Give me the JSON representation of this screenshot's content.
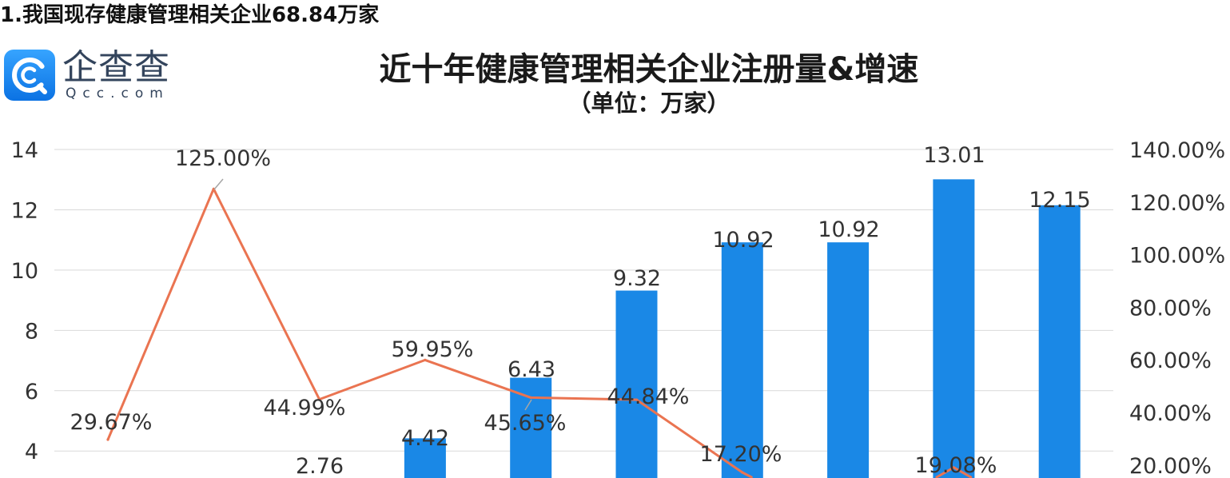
{
  "heading": "1.我国现存健康管理相关企业68.84万家",
  "logo": {
    "icon": "qcc-logo-icon",
    "name": "企查查",
    "domain": "Qcc.com",
    "color": "#1C87EC"
  },
  "chart_data": {
    "type": "bar",
    "title": "近十年健康管理相关企业注册量&增速",
    "subtitle": "（单位：万家）",
    "grid": true,
    "y_left": {
      "ticks": [
        "14",
        "12",
        "10",
        "8",
        "6",
        "4"
      ]
    },
    "y_right": {
      "ticks": [
        "140.00%",
        "120.00%",
        "100.00%",
        "80.00%",
        "60.00%",
        "40.00%",
        "20.00%"
      ]
    },
    "series": [
      {
        "type": "bar",
        "axis": "left",
        "color": "#1A88E6",
        "values": [
          null,
          null,
          2.76,
          4.42,
          6.43,
          9.32,
          10.92,
          10.92,
          13.01,
          12.15
        ],
        "labels": [
          null,
          null,
          "2.76",
          "4.42",
          "6.43",
          "9.32",
          "10.92",
          "10.92",
          "13.01",
          "12.15"
        ]
      },
      {
        "type": "line",
        "axis": "right",
        "color": "#EA7451",
        "values": [
          29.67,
          125.0,
          44.99,
          59.95,
          45.65,
          44.84,
          17.2,
          null,
          19.08,
          null
        ],
        "labels": [
          "29.67%",
          "125.00%",
          "44.99%",
          "59.95%",
          "45.65%",
          "44.84%",
          "17.20%",
          null,
          "19.08%",
          null
        ]
      }
    ]
  }
}
